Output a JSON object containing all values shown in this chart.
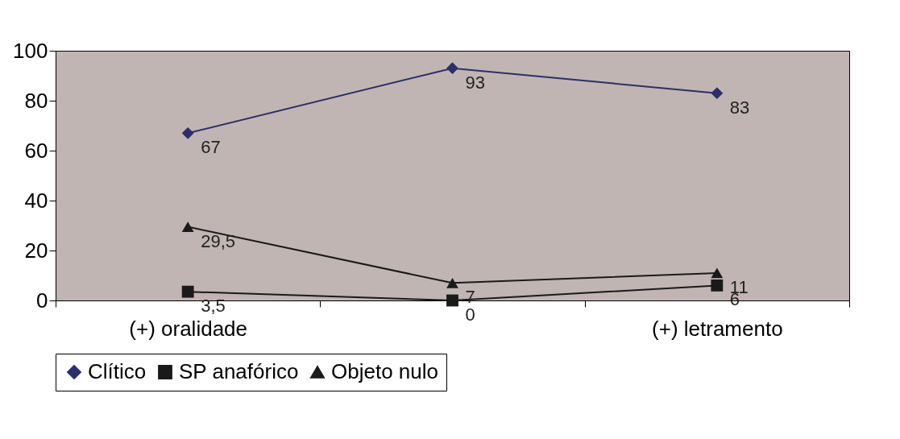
{
  "chart_data": {
    "type": "line",
    "categories": [
      "(+) oralidade",
      null,
      "(+) letramento"
    ],
    "series": [
      {
        "name": "Clítico",
        "color": "#2b2f6b",
        "marker": "diamond",
        "values": [
          67,
          93,
          83
        ],
        "value_labels": [
          "67",
          "93",
          "83"
        ]
      },
      {
        "name": "SP anafórico",
        "color": "#1a1a1a",
        "marker": "square",
        "values": [
          3.5,
          0,
          6
        ],
        "value_labels": [
          "3,5",
          "0",
          "6"
        ]
      },
      {
        "name": "Objeto nulo",
        "color": "#1a1a1a",
        "marker": "triangle",
        "values": [
          29.5,
          7,
          11
        ],
        "value_labels": [
          "29,5",
          "7",
          "11"
        ]
      }
    ],
    "ylim": [
      0,
      100
    ],
    "yticks": [
      0,
      20,
      40,
      60,
      80,
      100
    ],
    "grid": false,
    "legend": "bottom"
  }
}
